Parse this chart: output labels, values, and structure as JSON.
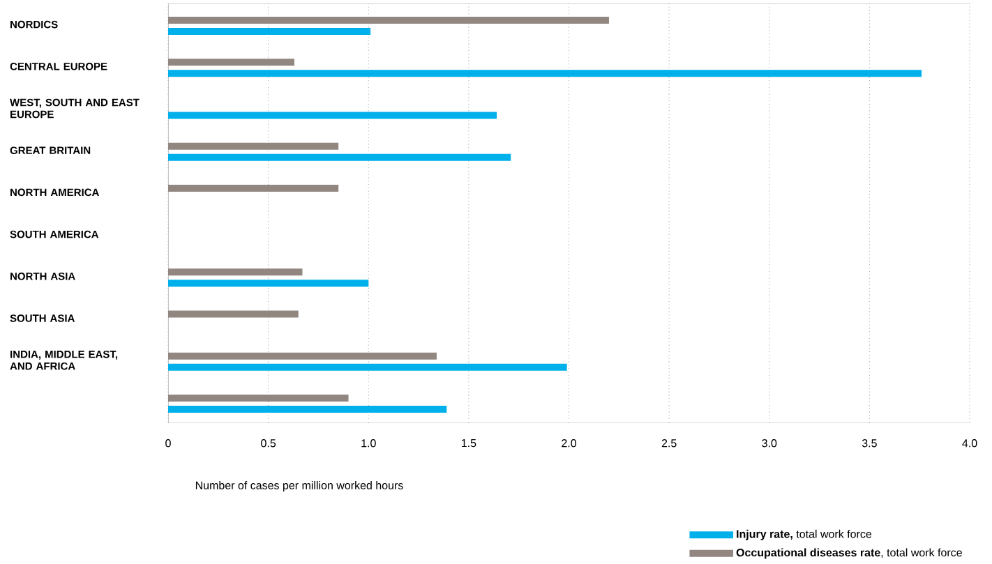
{
  "chart_data": {
    "type": "bar",
    "orientation": "horizontal",
    "categories": [
      "NORDICS",
      "CENTRAL EUROPE",
      "WEST, SOUTH AND EAST EUROPE",
      "GREAT BRITAIN",
      "NORTH AMERICA",
      "SOUTH AMERICA",
      "NORTH ASIA",
      "SOUTH ASIA",
      "INDIA, MIDDLE EAST, AND AFRICA",
      null
    ],
    "series": [
      {
        "name": "**Injury rate,** total work force",
        "color": "#00b0ea",
        "values": [
          1.01,
          3.76,
          1.64,
          1.71,
          null,
          null,
          1.0,
          null,
          1.99,
          1.39
        ]
      },
      {
        "name": "**Occupational diseases rate**, total work force",
        "color": "#918680",
        "values": [
          2.2,
          0.63,
          null,
          0.85,
          0.85,
          null,
          0.67,
          0.65,
          1.34,
          0.9
        ]
      }
    ],
    "xlabel": "Number of cases per million worked hours",
    "xlim": [
      0,
      4.0
    ],
    "xticks": [
      {
        "value": 0,
        "label": "0"
      },
      {
        "value": 0.5,
        "label": "0.5"
      },
      {
        "value": 1.0,
        "label": "1.0"
      },
      {
        "value": 1.5,
        "label": "1.5"
      },
      {
        "value": 2.0,
        "label": "2.0"
      },
      {
        "value": 2.5,
        "label": "2.5"
      },
      {
        "value": 3.0,
        "label": "3.0"
      },
      {
        "value": 3.5,
        "label": "3.5"
      },
      {
        "value": 4.0,
        "label": "4.0"
      }
    ],
    "grid": "x",
    "legend": "bottom right"
  }
}
